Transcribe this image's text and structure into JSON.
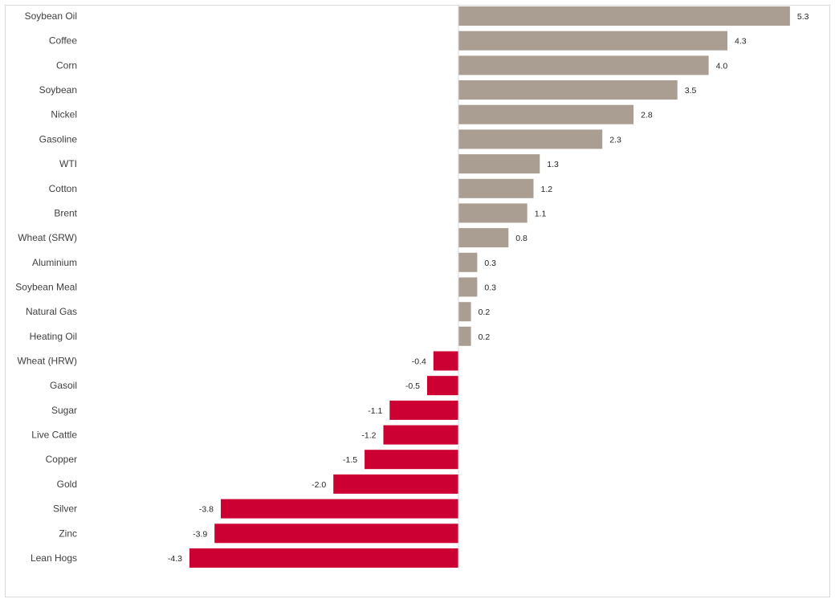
{
  "chart_data": {
    "type": "bar",
    "orientation": "horizontal",
    "title": "",
    "xlabel": "",
    "ylabel": "",
    "grid": false,
    "legend": "none",
    "xlim": [
      -4.3,
      5.3
    ],
    "positive_color": "#aa9e92",
    "negative_color": "#cc0033",
    "categories": [
      "Soybean Oil",
      "Coffee",
      "Corn",
      "Soybean",
      "Nickel",
      "Gasoline",
      "WTI",
      "Cotton",
      "Brent",
      "Wheat (SRW)",
      "Aluminium",
      "Soybean Meal",
      "Natural Gas",
      "Heating Oil",
      "Wheat (HRW)",
      "Gasoil",
      "Sugar",
      "Live Cattle",
      "Copper",
      "Gold",
      "Silver",
      "Zinc",
      "Lean Hogs"
    ],
    "values": [
      5.3,
      4.3,
      4.0,
      3.5,
      2.8,
      2.3,
      1.3,
      1.2,
      1.1,
      0.8,
      0.3,
      0.3,
      0.2,
      0.2,
      -0.4,
      -0.5,
      -1.1,
      -1.2,
      -1.5,
      -2.0,
      -3.8,
      -3.9,
      -4.3
    ],
    "value_labels": [
      "5.3",
      "4.3",
      "4.0",
      "3.5",
      "2.8",
      "2.3",
      "1.3",
      "1.2",
      "1.1",
      "0.8",
      "0.3",
      "0.3",
      "0.2",
      "0.2",
      "-0.4",
      "-0.5",
      "-1.1",
      "-1.2",
      "-1.5",
      "-2.0",
      "-3.8",
      "-3.9",
      "-4.3"
    ]
  }
}
